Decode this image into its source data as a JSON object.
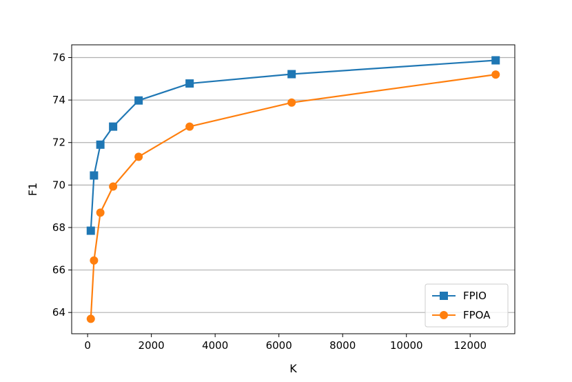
{
  "chart_data": {
    "type": "line",
    "title": "",
    "xlabel": "K",
    "ylabel": "F1",
    "xlim": [
      -500,
      13400
    ],
    "ylim": [
      63.0,
      76.6
    ],
    "xticks": [
      0,
      2000,
      4000,
      6000,
      8000,
      10000,
      12000
    ],
    "yticks": [
      64,
      66,
      68,
      70,
      72,
      74,
      76
    ],
    "grid": "horizontal",
    "legend_position": "lower-right",
    "x": [
      100,
      200,
      400,
      800,
      1600,
      3200,
      6400,
      12800
    ],
    "series": [
      {
        "name": "FPIO",
        "color": "#1f77b4",
        "marker": "square",
        "values": [
          67.85,
          70.45,
          71.9,
          72.75,
          73.98,
          74.78,
          75.22,
          75.87
        ]
      },
      {
        "name": "FPOA",
        "color": "#ff7f0e",
        "marker": "circle",
        "values": [
          63.7,
          66.45,
          68.7,
          69.93,
          71.33,
          72.75,
          73.88,
          75.2
        ]
      }
    ]
  }
}
